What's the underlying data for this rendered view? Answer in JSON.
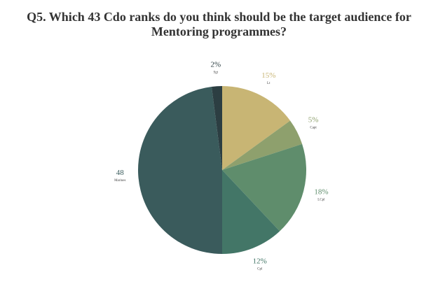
{
  "title": {
    "line1": "Q5. Which 43 Cdo ranks do you think should be the target audience for",
    "line2": "Mentoring programmes?"
  },
  "chart_data": {
    "type": "pie",
    "title": "Q5. Which 43 Cdo ranks do you think should be the target audience for Mentoring programmes?",
    "start": "12 o'clock",
    "direction": "clockwise",
    "slices": [
      {
        "name": "Lt",
        "value": 15,
        "label": "15%",
        "color": "#c8b574"
      },
      {
        "name": "Capt",
        "value": 5,
        "label": "5%",
        "color": "#8ea06d"
      },
      {
        "name": "LCpl",
        "value": 18,
        "label": "18%",
        "color": "#5f8d6c"
      },
      {
        "name": "Cpl",
        "value": 12,
        "label": "12%",
        "color": "#437667"
      },
      {
        "name": "Marines",
        "value": 48,
        "label": "48",
        "color": "#3a5b5c"
      },
      {
        "name": "Sgt",
        "value": 2,
        "label": "2%",
        "color": "#2c3e42"
      }
    ]
  }
}
